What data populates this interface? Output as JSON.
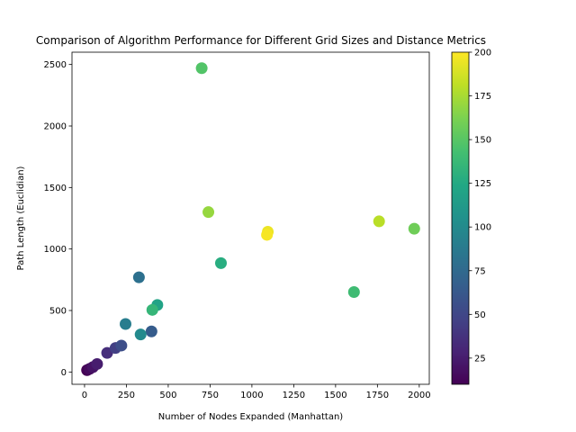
{
  "chart_data": {
    "type": "scatter",
    "title": "Comparison of Algorithm Performance for Different Grid Sizes and Distance Metrics",
    "xlabel": "Number of Nodes Expanded (Manhattan)",
    "ylabel": "Path Length (Euclidian)",
    "xlim": [
      -75,
      2060
    ],
    "ylim": [
      -100,
      2600
    ],
    "xticks": [
      0,
      250,
      500,
      750,
      1000,
      1250,
      1500,
      1750,
      2000
    ],
    "yticks": [
      0,
      500,
      1000,
      1500,
      2000,
      2500
    ],
    "colorbar": {
      "colormap": "viridis",
      "range": [
        10,
        200
      ],
      "ticks": [
        25,
        50,
        75,
        100,
        125,
        150,
        175,
        200
      ]
    },
    "points": [
      {
        "x": 15,
        "y": 15,
        "c": 10
      },
      {
        "x": 30,
        "y": 25,
        "c": 15
      },
      {
        "x": 50,
        "y": 40,
        "c": 20
      },
      {
        "x": 75,
        "y": 65,
        "c": 25
      },
      {
        "x": 135,
        "y": 155,
        "c": 35
      },
      {
        "x": 185,
        "y": 195,
        "c": 45
      },
      {
        "x": 220,
        "y": 215,
        "c": 55
      },
      {
        "x": 400,
        "y": 330,
        "c": 65
      },
      {
        "x": 325,
        "y": 770,
        "c": 80
      },
      {
        "x": 245,
        "y": 390,
        "c": 90
      },
      {
        "x": 335,
        "y": 305,
        "c": 100
      },
      {
        "x": 435,
        "y": 545,
        "c": 120
      },
      {
        "x": 405,
        "y": 505,
        "c": 135
      },
      {
        "x": 815,
        "y": 885,
        "c": 128
      },
      {
        "x": 1610,
        "y": 650,
        "c": 140
      },
      {
        "x": 700,
        "y": 2470,
        "c": 148
      },
      {
        "x": 1970,
        "y": 1165,
        "c": 158
      },
      {
        "x": 740,
        "y": 1300,
        "c": 170
      },
      {
        "x": 1760,
        "y": 1225,
        "c": 180
      },
      {
        "x": 1095,
        "y": 1140,
        "c": 195
      },
      {
        "x": 1090,
        "y": 1115,
        "c": 198
      }
    ]
  }
}
